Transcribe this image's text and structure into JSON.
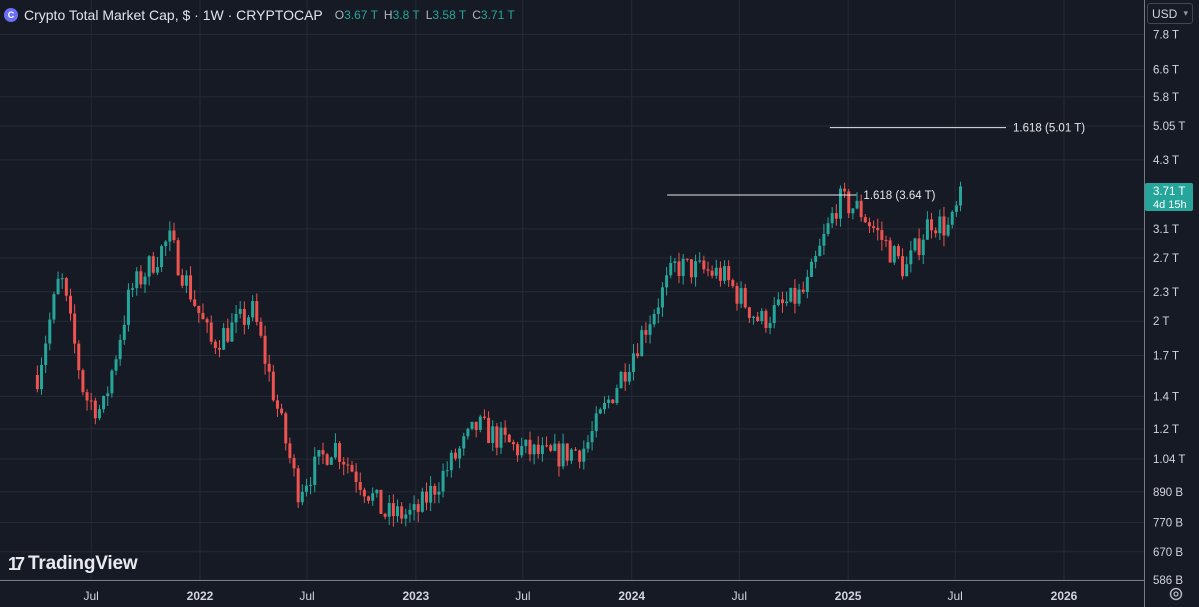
{
  "header": {
    "title": "Crypto Total Market Cap, $ · 1W · CRYPTOCAP",
    "open_label": "O",
    "open": "3.67 T",
    "high_label": "H",
    "high": "3.8 T",
    "low_label": "L",
    "low": "3.58 T",
    "close_label": "C",
    "close": "3.71 T"
  },
  "currency": {
    "label": "USD"
  },
  "logo": {
    "text": "TradingView",
    "icon": "tradingview-logo-icon"
  },
  "colors": {
    "background": "#161a25",
    "grid": "#262a36",
    "up": "#26a69a",
    "down": "#ef5350",
    "text": "#d1d4dc",
    "axis_border": "#787b86",
    "last_price_bg": "#26a69a"
  },
  "chart_data": {
    "type": "candlestick",
    "y_scale": "log",
    "x_tick_labels": [
      "Jul",
      "2022",
      "Jul",
      "2023",
      "Jul",
      "2024",
      "Jul",
      "2025",
      "Jul",
      "2026"
    ],
    "y_tick_labels": [
      "7.8 T",
      "6.6 T",
      "5.8 T",
      "5.05 T",
      "4.3 T",
      "3.1 T",
      "2.7 T",
      "2.3 T",
      "2 T",
      "1.7 T",
      "1.4 T",
      "1.2 T",
      "1.04 T",
      "890 B",
      "770 B",
      "670 B",
      "586 B"
    ],
    "last_price": {
      "value": "3.71 T",
      "countdown": "4d 15h"
    },
    "price_path_trillions": [
      {
        "x": "2021-04-01",
        "y": 1.55
      },
      {
        "x": "2021-05-10",
        "y": 2.5
      },
      {
        "x": "2021-06-20",
        "y": 1.4
      },
      {
        "x": "2021-07-20",
        "y": 1.3
      },
      {
        "x": "2021-09-05",
        "y": 2.3
      },
      {
        "x": "2021-11-10",
        "y": 2.95
      },
      {
        "x": "2022-01-20",
        "y": 1.8
      },
      {
        "x": "2022-04-01",
        "y": 2.1
      },
      {
        "x": "2022-06-15",
        "y": 0.9
      },
      {
        "x": "2022-08-15",
        "y": 1.12
      },
      {
        "x": "2022-11-10",
        "y": 0.8
      },
      {
        "x": "2022-12-31",
        "y": 0.8
      },
      {
        "x": "2023-04-15",
        "y": 1.22
      },
      {
        "x": "2023-06-15",
        "y": 1.1
      },
      {
        "x": "2023-08-15",
        "y": 1.05
      },
      {
        "x": "2023-10-15",
        "y": 1.1
      },
      {
        "x": "2023-12-31",
        "y": 1.7
      },
      {
        "x": "2024-03-15",
        "y": 2.6
      },
      {
        "x": "2024-06-01",
        "y": 2.5
      },
      {
        "x": "2024-08-05",
        "y": 2.0
      },
      {
        "x": "2024-10-20",
        "y": 2.3
      },
      {
        "x": "2024-12-15",
        "y": 3.55
      },
      {
        "x": "2025-01-20",
        "y": 3.4
      },
      {
        "x": "2025-04-08",
        "y": 2.55
      },
      {
        "x": "2025-05-20",
        "y": 3.25
      },
      {
        "x": "2025-06-22",
        "y": 3.1
      },
      {
        "x": "2025-07-15",
        "y": 3.71
      }
    ],
    "fib_levels": [
      {
        "label": "1.618 (3.64 T)",
        "value": 3.64,
        "x_start": "2024-03-01",
        "x_end": "2025-01-15"
      },
      {
        "label": "1.618 (5.01 T)",
        "value": 5.01,
        "x_start": "2024-12-01",
        "x_end": "2025-09-25"
      }
    ]
  }
}
